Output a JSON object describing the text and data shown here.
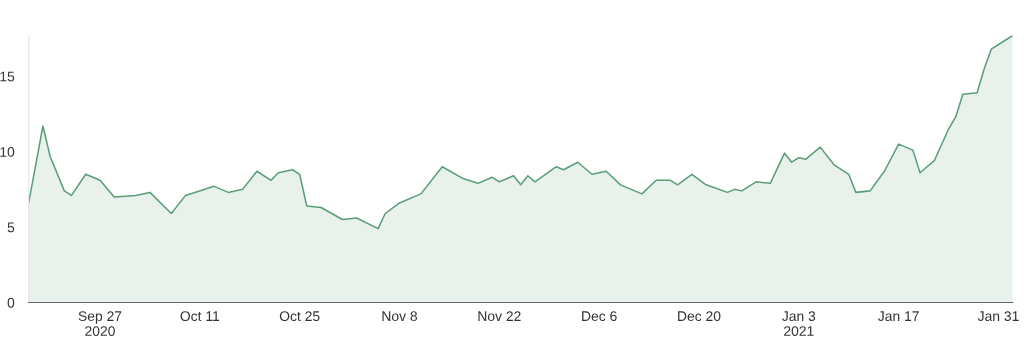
{
  "chart_data": {
    "type": "area",
    "x": [
      "2020-09-17",
      "2020-09-19",
      "2020-09-20",
      "2020-09-22",
      "2020-09-23",
      "2020-09-25",
      "2020-09-27",
      "2020-09-29",
      "2020-10-02",
      "2020-10-04",
      "2020-10-07",
      "2020-10-09",
      "2020-10-13",
      "2020-10-15",
      "2020-10-17",
      "2020-10-19",
      "2020-10-21",
      "2020-10-22",
      "2020-10-24",
      "2020-10-25",
      "2020-10-26",
      "2020-10-28",
      "2020-10-31",
      "2020-11-02",
      "2020-11-05",
      "2020-11-06",
      "2020-11-08",
      "2020-11-11",
      "2020-11-14",
      "2020-11-17",
      "2020-11-19",
      "2020-11-21",
      "2020-11-22",
      "2020-11-24",
      "2020-11-25",
      "2020-11-26",
      "2020-11-27",
      "2020-11-30",
      "2020-12-01",
      "2020-12-03",
      "2020-12-05",
      "2020-12-07",
      "2020-12-09",
      "2020-12-12",
      "2020-12-14",
      "2020-12-16",
      "2020-12-17",
      "2020-12-19",
      "2020-12-21",
      "2020-12-24",
      "2020-12-25",
      "2020-12-26",
      "2020-12-28",
      "2020-12-30",
      "2021-01-01",
      "2021-01-02",
      "2021-01-03",
      "2021-01-04",
      "2021-01-06",
      "2021-01-08",
      "2021-01-10",
      "2021-01-11",
      "2021-01-13",
      "2021-01-15",
      "2021-01-17",
      "2021-01-19",
      "2021-01-20",
      "2021-01-22",
      "2021-01-24",
      "2021-01-25",
      "2021-01-26",
      "2021-01-28",
      "2021-01-29",
      "2021-01-30",
      "2021-02-01",
      "2021-02-02"
    ],
    "series": [
      {
        "color": "#5a9e78",
        "values": [
          6.6,
          11.7,
          9.7,
          7.4,
          7.1,
          8.5,
          8.1,
          7.0,
          7.1,
          7.3,
          5.9,
          7.1,
          7.7,
          7.3,
          7.5,
          8.7,
          8.1,
          8.6,
          8.8,
          8.5,
          6.4,
          6.3,
          5.5,
          5.6,
          4.9,
          5.9,
          6.6,
          7.2,
          9.0,
          8.2,
          7.9,
          8.3,
          8.0,
          8.4,
          7.8,
          8.4,
          8.0,
          9.0,
          8.8,
          9.3,
          8.5,
          8.7,
          7.8,
          7.2,
          8.1,
          8.1,
          7.8,
          8.5,
          7.8,
          7.3,
          7.5,
          7.4,
          8.0,
          7.9,
          9.9,
          9.3,
          9.6,
          9.5,
          10.3,
          9.1,
          8.5,
          7.3,
          7.4,
          8.7,
          10.5,
          10.1,
          8.6,
          9.4,
          11.5,
          12.3,
          13.8,
          13.9,
          15.5,
          16.8,
          17.4,
          17.7
        ]
      }
    ],
    "xlim": [
      "2020-09-17",
      "2021-02-02"
    ],
    "xticks": [
      {
        "value": "2020-09-27",
        "label": "Sep 27\n2020"
      },
      {
        "value": "2020-10-11",
        "label": "Oct 11"
      },
      {
        "value": "2020-10-25",
        "label": "Oct 25"
      },
      {
        "value": "2020-11-08",
        "label": "Nov 8"
      },
      {
        "value": "2020-11-22",
        "label": "Nov 22"
      },
      {
        "value": "2020-12-06",
        "label": "Dec 6"
      },
      {
        "value": "2020-12-20",
        "label": "Dec 20"
      },
      {
        "value": "2021-01-03",
        "label": "Jan 3\n2021"
      },
      {
        "value": "2021-01-17",
        "label": "Jan 17"
      },
      {
        "value": "2021-01-31",
        "label": "Jan 31"
      }
    ],
    "ylim": [
      0,
      17.7
    ],
    "yticks": [
      0,
      5,
      10,
      15
    ],
    "grid": false,
    "line_style": "solid",
    "marker": "none"
  }
}
